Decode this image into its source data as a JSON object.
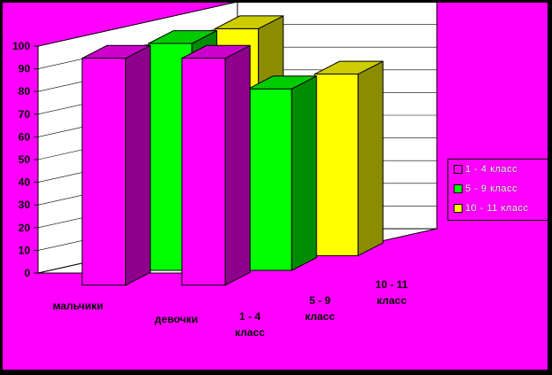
{
  "chart_data": {
    "type": "bar",
    "subtype": "3d-column",
    "categories": [
      "мальчики",
      "девочки"
    ],
    "series": [
      {
        "name": "1 - 4 класс",
        "color": "#ff00ff",
        "values": [
          100,
          100
        ]
      },
      {
        "name": "5 - 9 класс",
        "color": "#00ff00",
        "values": [
          100,
          80
        ]
      },
      {
        "name": "10 - 11 класс",
        "color": "#ffff00",
        "values": [
          100,
          80
        ]
      }
    ],
    "depth_labels": [
      {
        "line1": "1 - 4",
        "line2": "класс"
      },
      {
        "line1": "5 - 9",
        "line2": "класс"
      },
      {
        "line1": "10 - 11",
        "line2": "класс"
      }
    ],
    "y_ticks": [
      "0",
      "10",
      "20",
      "30",
      "40",
      "50",
      "60",
      "70",
      "80",
      "90",
      "100"
    ],
    "ylim": [
      0,
      100
    ],
    "grid": true,
    "legend_position": "right",
    "title": "",
    "xlabel": "",
    "ylabel": ""
  }
}
